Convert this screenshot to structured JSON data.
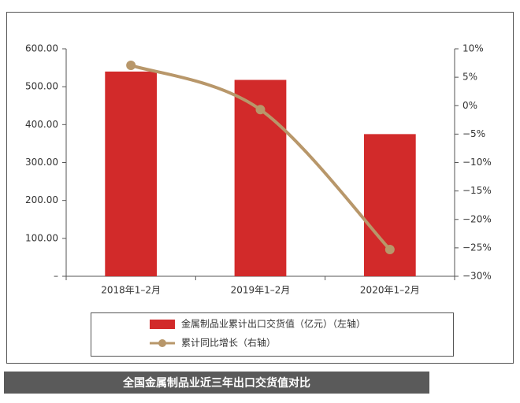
{
  "chart_data": {
    "type": "bar",
    "title": "全国金属制品业近三年出口交货值对比",
    "categories": [
      "2018年1–2月",
      "2019年1–2月",
      "2020年1–2月"
    ],
    "series": [
      {
        "name": "金属制品业累计出口交货值（亿元）（左轴）",
        "type": "bar",
        "color": "#d22a2a",
        "values": [
          540,
          518,
          375
        ]
      },
      {
        "name": "累计同比增长（右轴）",
        "type": "line",
        "axis": "y2",
        "color": "#b8976a",
        "values": [
          7.1,
          -0.7,
          -25.3
        ]
      }
    ],
    "ylim": [
      0,
      600
    ],
    "yticks": [
      {
        "value": 0,
        "label": "–"
      },
      {
        "value": 100,
        "label": "100.00"
      },
      {
        "value": 200,
        "label": "200.00"
      },
      {
        "value": 300,
        "label": "300.00"
      },
      {
        "value": 400,
        "label": "400.00"
      },
      {
        "value": 500,
        "label": "500.00"
      },
      {
        "value": 600,
        "label": "600.00"
      }
    ],
    "y2lim": [
      -30,
      10
    ],
    "y2ticks": [
      {
        "value": 10,
        "label": "10%"
      },
      {
        "value": 5,
        "label": "5%"
      },
      {
        "value": 0,
        "label": "0%"
      },
      {
        "value": -5,
        "label": "−5%"
      },
      {
        "value": -10,
        "label": "−10%"
      },
      {
        "value": -15,
        "label": "−15%"
      },
      {
        "value": -20,
        "label": "−20%"
      },
      {
        "value": -25,
        "label": "−25%"
      },
      {
        "value": -30,
        "label": "−30%"
      }
    ]
  }
}
